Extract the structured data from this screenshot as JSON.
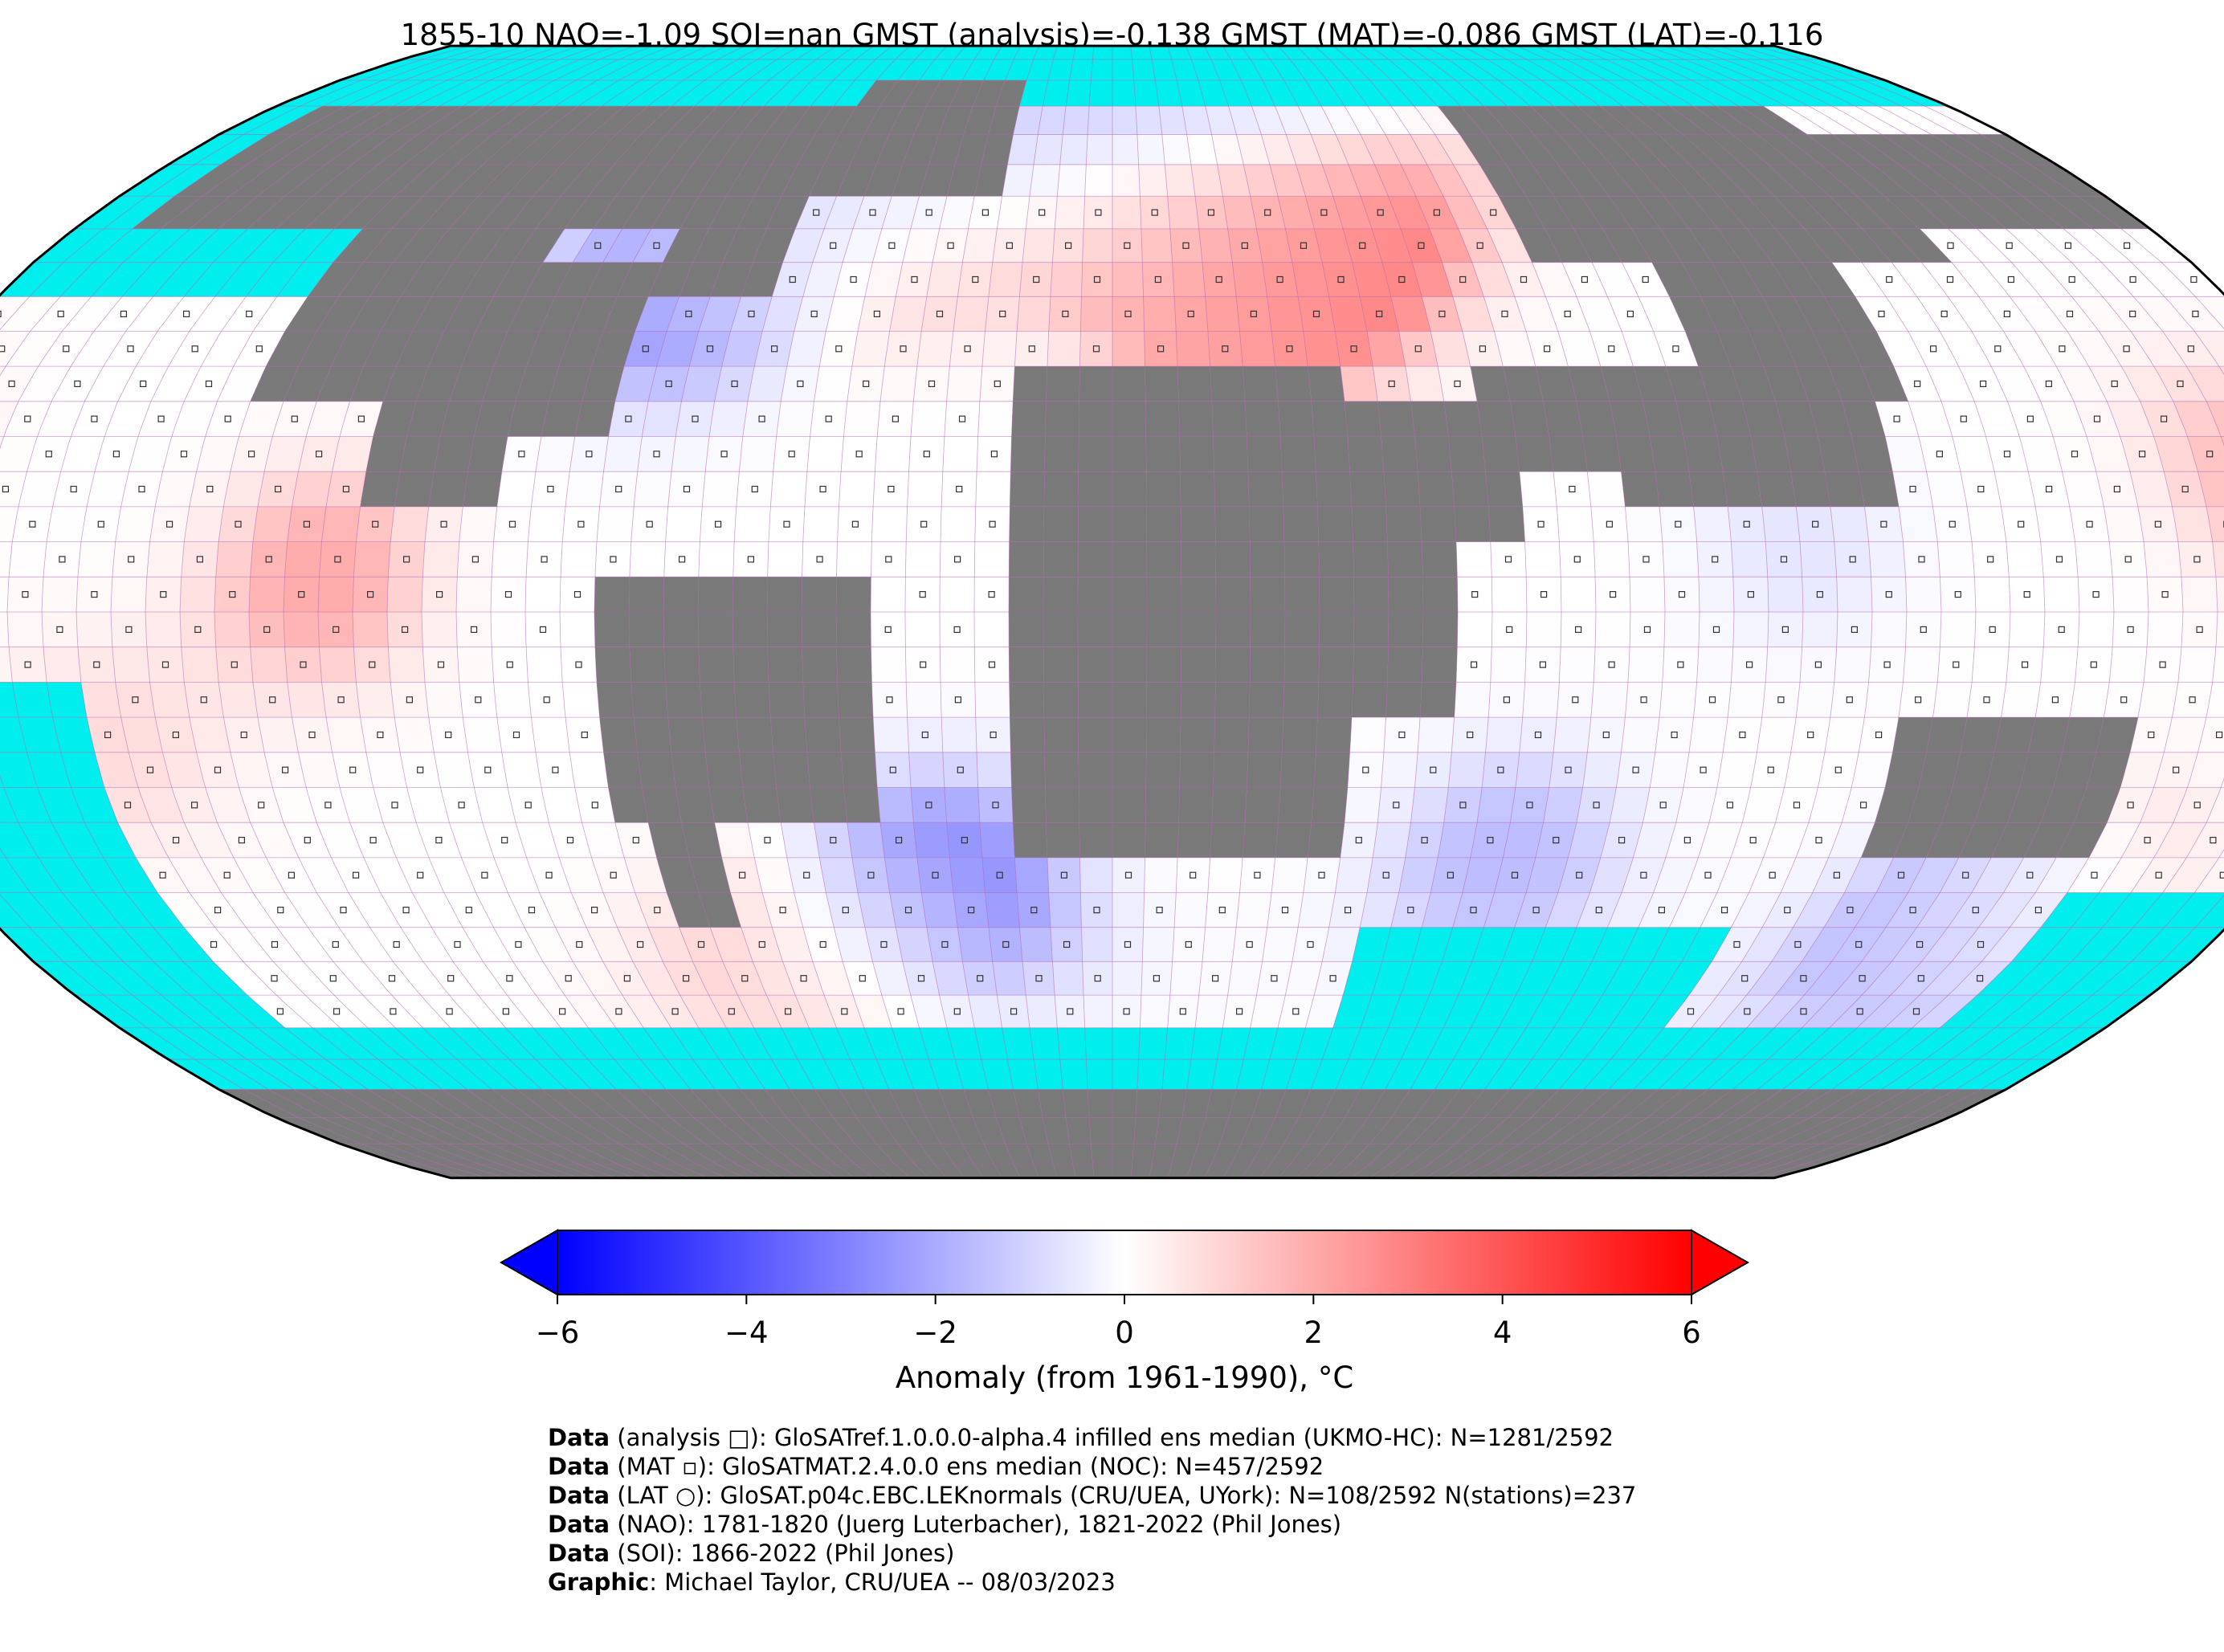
{
  "title": "1855-10 NAO=-1.09 SOI=nan GMST (analysis)=-0.138 GMST (MAT)=-0.086 GMST (LAT)=-0.116",
  "colors": {
    "ocean_mask": "#00eeee",
    "land_mask": "#7a7a7a",
    "grid": "#b060b0",
    "cold": "#0000ff",
    "neutral": "#ffffff",
    "warm": "#ff0000"
  },
  "colorbar": {
    "min": -6,
    "max": 6,
    "ticks": [
      "−6",
      "−4",
      "−2",
      "0",
      "2",
      "4",
      "6"
    ],
    "label": "Anomaly (from 1961-1990), °C"
  },
  "map": {
    "projection": "Robinson",
    "grid_resolution_deg": 5,
    "anomaly_regions": [
      {
        "lon": -40,
        "lat": 55,
        "value": 2.2
      },
      {
        "lon": 35,
        "lat": 52,
        "value": 3.2
      },
      {
        "lon": 15,
        "lat": 45,
        "value": 2.0
      },
      {
        "lon": -70,
        "lat": 45,
        "value": -2.6
      },
      {
        "lon": -45,
        "lat": 67,
        "value": -2.4
      },
      {
        "lon": 0,
        "lat": 72,
        "value": -2.2
      },
      {
        "lon": -115,
        "lat": 5,
        "value": 2.0
      },
      {
        "lon": -25,
        "lat": -38,
        "value": -2.8
      },
      {
        "lon": 135,
        "lat": -45,
        "value": -2.4
      },
      {
        "lon": 170,
        "lat": 20,
        "value": 1.6
      },
      {
        "lon": -55,
        "lat": -50,
        "value": 1.4
      },
      {
        "lon": 150,
        "lat": -38,
        "value": 1.2
      },
      {
        "lon": 60,
        "lat": -35,
        "value": -1.6
      },
      {
        "lon": -150,
        "lat": -20,
        "value": 0.8
      },
      {
        "lon": 100,
        "lat": 10,
        "value": -0.6
      }
    ]
  },
  "credits": [
    {
      "bold": "Data",
      "text": " (analysis □): GloSATref.1.0.0.0-alpha.4 infilled ens median (UKMO-HC): N=1281/2592"
    },
    {
      "bold": "Data",
      "text": " (MAT ▫): GloSATMAT.2.4.0.0 ens median (NOC): N=457/2592"
    },
    {
      "bold": "Data",
      "text": " (LAT ○): GloSAT.p04c.EBC.LEKnormals (CRU/UEA, UYork): N=108/2592 N(stations)=237"
    },
    {
      "bold": "Data",
      "text": " (NAO): 1781-1820 (Juerg Luterbacher), 1821-2022 (Phil Jones)"
    },
    {
      "bold": "Data",
      "text": " (SOI): 1866-2022 (Phil Jones)"
    },
    {
      "bold": "Graphic",
      "text": ": Michael Taylor, CRU/UEA -- 08/03/2023"
    }
  ]
}
